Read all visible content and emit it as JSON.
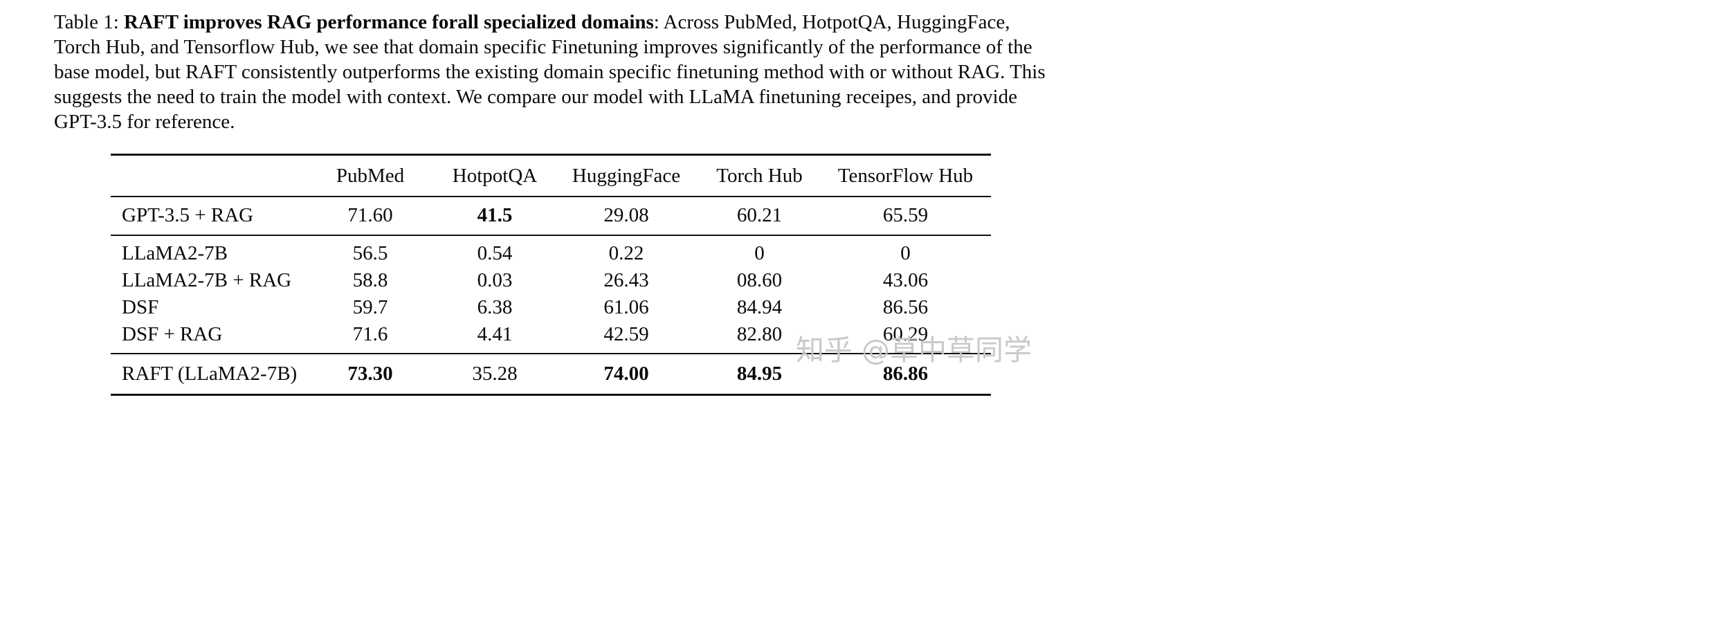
{
  "caption": {
    "prefix": "Table 1: ",
    "bold": "RAFT improves RAG performance forall specialized domains",
    "rest": ": Across PubMed, HotpotQA, HuggingFace, Torch Hub, and Tensorflow Hub, we see that domain specific Finetuning improves significantly of the performance of the base model, but RAFT  consistently outperforms the existing domain specific finetuning method with or without RAG. This suggests the need to train the model with context. We compare our model with LLaMA finetuning receipes, and provide GPT-3.5 for reference."
  },
  "table": {
    "columns": [
      "",
      "PubMed",
      "HotpotQA",
      "HuggingFace",
      "Torch Hub",
      "TensorFlow Hub"
    ],
    "groups": [
      {
        "rows": [
          {
            "model": "GPT-3.5 + RAG",
            "values": [
              "71.60",
              "41.5",
              "29.08",
              "60.21",
              "65.59"
            ],
            "bold": [
              false,
              true,
              false,
              false,
              false
            ]
          }
        ]
      },
      {
        "rows": [
          {
            "model": "LLaMA2-7B",
            "values": [
              "56.5",
              "0.54",
              "0.22",
              "0",
              "0"
            ],
            "bold": [
              false,
              false,
              false,
              false,
              false
            ]
          },
          {
            "model": "LLaMA2-7B + RAG",
            "values": [
              "58.8",
              "0.03",
              "26.43",
              "08.60",
              "43.06"
            ],
            "bold": [
              false,
              false,
              false,
              false,
              false
            ]
          },
          {
            "model": "DSF",
            "values": [
              "59.7",
              "6.38",
              "61.06",
              "84.94",
              "86.56"
            ],
            "bold": [
              false,
              false,
              false,
              false,
              false
            ]
          },
          {
            "model": "DSF + RAG",
            "values": [
              "71.6",
              "4.41",
              "42.59",
              "82.80",
              "60.29"
            ],
            "bold": [
              false,
              false,
              false,
              false,
              false
            ]
          }
        ]
      },
      {
        "rows": [
          {
            "model": "RAFT (LLaMA2-7B)",
            "values": [
              "73.30",
              "35.28",
              "74.00",
              "84.95",
              "86.86"
            ],
            "bold": [
              true,
              false,
              true,
              true,
              true
            ]
          }
        ]
      }
    ]
  },
  "watermark": {
    "text": "知乎 @草中草同学"
  }
}
